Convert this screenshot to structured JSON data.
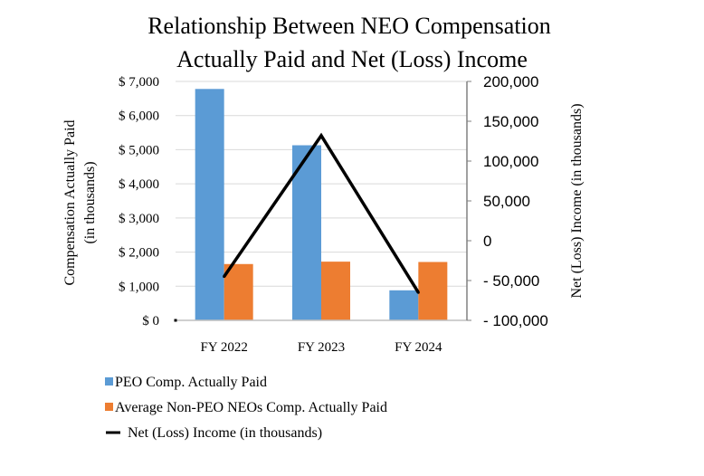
{
  "chart_data": {
    "type": "bar",
    "title_lines": [
      "Relationship Between NEO Compensation",
      "Actually Paid and Net (Loss) Income"
    ],
    "categories": [
      "FY 2022",
      "FY 2023",
      "FY 2024"
    ],
    "series": [
      {
        "name": "PEO Comp. Actually Paid",
        "type": "bar",
        "axis": "left",
        "color": "#5b9bd5",
        "values": [
          6780,
          5130,
          880
        ]
      },
      {
        "name": "Average Non-PEO NEOs Comp. Actually Paid",
        "type": "bar",
        "axis": "left",
        "color": "#ed7d31",
        "values": [
          1650,
          1720,
          1710
        ]
      },
      {
        "name": "Net (Loss) Income (in thousands)",
        "type": "line",
        "axis": "right",
        "color": "#000000",
        "values": [
          -45000,
          132000,
          -65000
        ]
      }
    ],
    "ylabel_lines": [
      "Compensation Actually Paid",
      "(in thousands)"
    ],
    "ylabel_right": "Net (Loss) Income (in thousands)",
    "ylim": [
      0,
      7000
    ],
    "ylim_right": [
      -100000,
      200000
    ],
    "yticks": [
      0,
      1000,
      2000,
      3000,
      4000,
      5000,
      6000,
      7000
    ],
    "ytick_labels": [
      "$ 0",
      "$ 1,000",
      "$ 2,000",
      "$ 3,000",
      "$ 4,000",
      "$ 5,000",
      "$ 6,000",
      "$ 7,000"
    ],
    "yticks_right": [
      -100000,
      -50000,
      0,
      50000,
      100000,
      150000,
      200000
    ],
    "ytick_labels_right": [
      "- 100,000",
      "- 50,000",
      "0",
      "50,000",
      "100,000",
      "150,000",
      "200,000"
    ],
    "grid": true,
    "legend_position": "bottom-left"
  }
}
